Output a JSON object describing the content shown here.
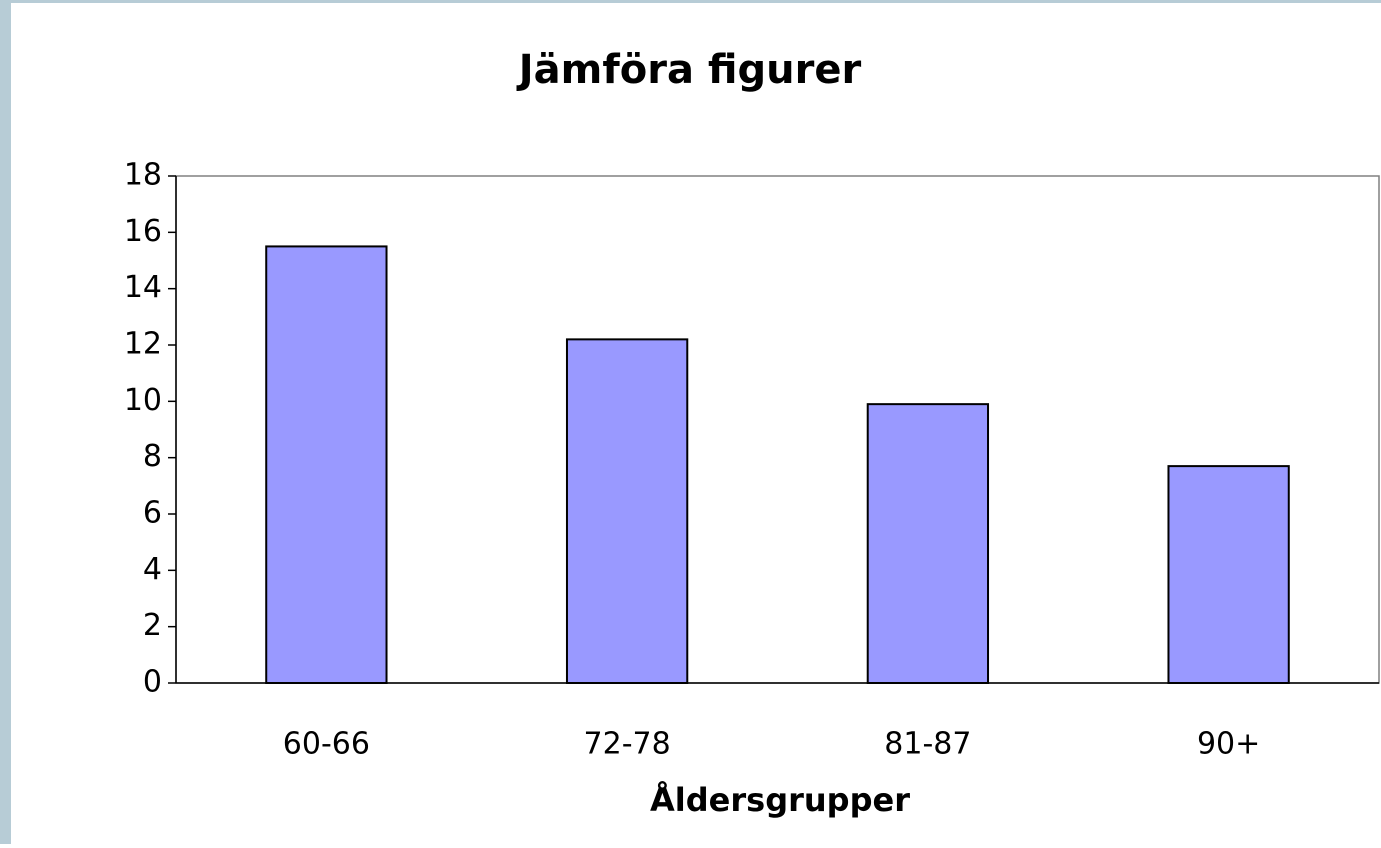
{
  "chart_data": {
    "type": "bar",
    "title": "Jämföra figurer",
    "x_label": "Åldersgrupper",
    "categories": [
      "60-66",
      "72-78",
      "81-87",
      "90+"
    ],
    "values": [
      15.5,
      12.2,
      9.9,
      7.7
    ],
    "color": "#9999ff",
    "ylim": [
      0,
      18
    ],
    "yticks": [
      0,
      2,
      4,
      6,
      8,
      10,
      12,
      14,
      16,
      18
    ],
    "grid": false
  }
}
